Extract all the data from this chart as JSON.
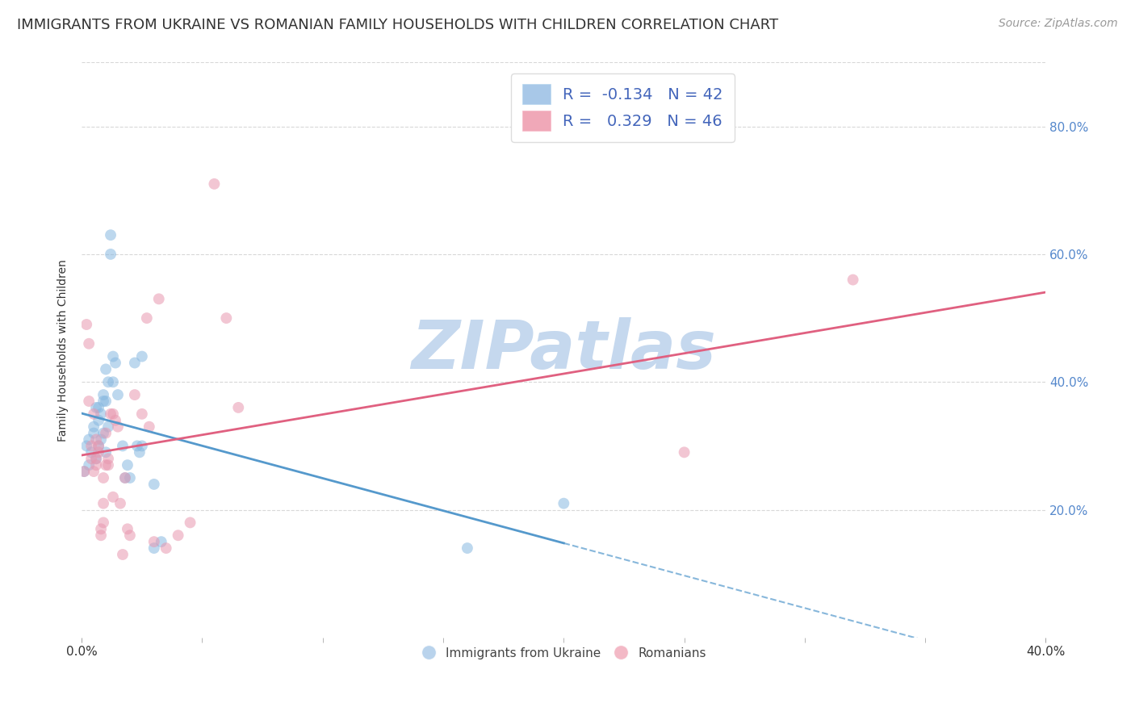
{
  "title": "IMMIGRANTS FROM UKRAINE VS ROMANIAN FAMILY HOUSEHOLDS WITH CHILDREN CORRELATION CHART",
  "source": "Source: ZipAtlas.com",
  "ylabel": "Family Households with Children",
  "watermark": "ZIPatlas",
  "legend_entries": [
    {
      "label": "Immigrants from Ukraine",
      "R": -0.134,
      "N": 42,
      "patch_color": "#a8c8e8"
    },
    {
      "label": "Romanians",
      "R": 0.329,
      "N": 46,
      "patch_color": "#f0a8b8"
    }
  ],
  "ukraine_x": [
    0.001,
    0.002,
    0.003,
    0.003,
    0.004,
    0.005,
    0.005,
    0.006,
    0.006,
    0.007,
    0.007,
    0.007,
    0.008,
    0.008,
    0.009,
    0.009,
    0.009,
    0.01,
    0.01,
    0.01,
    0.011,
    0.011,
    0.012,
    0.012,
    0.013,
    0.013,
    0.014,
    0.015,
    0.017,
    0.018,
    0.019,
    0.02,
    0.022,
    0.023,
    0.024,
    0.025,
    0.025,
    0.03,
    0.03,
    0.033,
    0.16,
    0.2
  ],
  "ukraine_y": [
    0.26,
    0.3,
    0.27,
    0.31,
    0.29,
    0.32,
    0.33,
    0.28,
    0.36,
    0.3,
    0.34,
    0.36,
    0.31,
    0.35,
    0.32,
    0.37,
    0.38,
    0.29,
    0.37,
    0.42,
    0.33,
    0.4,
    0.63,
    0.6,
    0.44,
    0.4,
    0.43,
    0.38,
    0.3,
    0.25,
    0.27,
    0.25,
    0.43,
    0.3,
    0.29,
    0.44,
    0.3,
    0.14,
    0.24,
    0.15,
    0.14,
    0.21
  ],
  "romanian_x": [
    0.001,
    0.002,
    0.003,
    0.003,
    0.004,
    0.004,
    0.005,
    0.005,
    0.006,
    0.006,
    0.006,
    0.007,
    0.007,
    0.008,
    0.008,
    0.009,
    0.009,
    0.009,
    0.01,
    0.01,
    0.011,
    0.011,
    0.012,
    0.013,
    0.013,
    0.014,
    0.015,
    0.016,
    0.017,
    0.018,
    0.019,
    0.02,
    0.022,
    0.025,
    0.027,
    0.028,
    0.03,
    0.032,
    0.035,
    0.04,
    0.045,
    0.055,
    0.06,
    0.065,
    0.25,
    0.32
  ],
  "romanian_y": [
    0.26,
    0.49,
    0.37,
    0.46,
    0.28,
    0.3,
    0.26,
    0.35,
    0.28,
    0.27,
    0.31,
    0.3,
    0.29,
    0.16,
    0.17,
    0.21,
    0.18,
    0.25,
    0.27,
    0.32,
    0.27,
    0.28,
    0.35,
    0.22,
    0.35,
    0.34,
    0.33,
    0.21,
    0.13,
    0.25,
    0.17,
    0.16,
    0.38,
    0.35,
    0.5,
    0.33,
    0.15,
    0.53,
    0.14,
    0.16,
    0.18,
    0.71,
    0.5,
    0.36,
    0.29,
    0.56
  ],
  "ukraine_scatter_color": "#88b8e0",
  "romanian_scatter_color": "#e898b0",
  "ukraine_line_color": "#5599cc",
  "romanian_line_color": "#e06080",
  "xlim": [
    0.0,
    0.4
  ],
  "ylim": [
    0.0,
    0.9
  ],
  "ytick_positions": [
    0.2,
    0.4,
    0.6,
    0.8
  ],
  "ytick_labels": [
    "20.0%",
    "40.0%",
    "60.0%",
    "80.0%"
  ],
  "xtick_edge_left": "0.0%",
  "xtick_edge_right": "40.0%",
  "background_color": "#ffffff",
  "grid_color": "#d8d8d8",
  "title_fontsize": 13,
  "axis_label_fontsize": 10,
  "tick_fontsize": 11,
  "legend_fontsize": 14,
  "watermark_color": "#c5d8ee",
  "watermark_fontsize": 60,
  "source_fontsize": 10,
  "scatter_size": 100,
  "scatter_alpha": 0.55
}
